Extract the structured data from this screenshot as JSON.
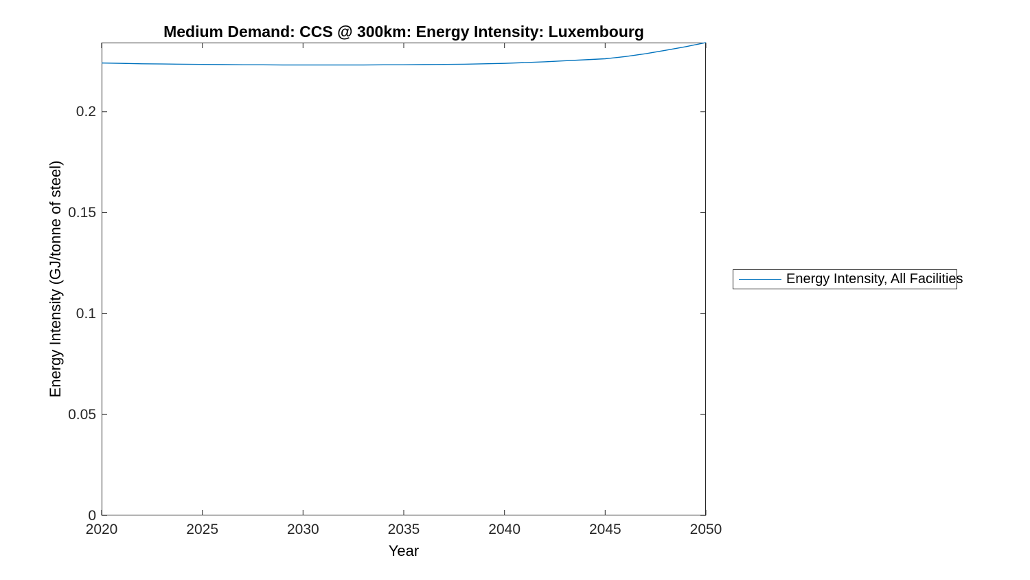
{
  "figure": {
    "title": "Medium Demand: CCS @ 300km: Energy Intensity: Luxembourg",
    "background": "#ffffff",
    "axis_color": "#262626",
    "line_color": "#0072BD"
  },
  "chart_data": {
    "type": "line",
    "title": "Medium Demand: CCS @ 300km: Energy Intensity: Luxembourg",
    "xlabel": "Year",
    "ylabel": "Energy Intensity (GJ/tonne of steel)",
    "legend": [
      "Energy Intensity, All Facilities"
    ],
    "legend_position": "outside-right",
    "grid": false,
    "box": true,
    "tick_direction": "in",
    "xlim": [
      2020,
      2050
    ],
    "ylim": [
      0,
      0.2343
    ],
    "xticks": [
      2020,
      2025,
      2030,
      2035,
      2040,
      2045,
      2050
    ],
    "xtick_labels": [
      "2020",
      "2025",
      "2030",
      "2035",
      "2040",
      "2045",
      "2050"
    ],
    "yticks": [
      0,
      0.05,
      0.1,
      0.15,
      0.2
    ],
    "ytick_labels": [
      "0",
      "0.05",
      "0.1",
      "0.15",
      "0.2"
    ],
    "series": [
      {
        "name": "Energy Intensity, All Facilities",
        "color": "#0072BD",
        "x": [
          2020,
          2021,
          2022,
          2023,
          2024,
          2025,
          2026,
          2027,
          2028,
          2029,
          2030,
          2031,
          2032,
          2033,
          2034,
          2035,
          2036,
          2037,
          2038,
          2039,
          2040,
          2041,
          2042,
          2043,
          2044,
          2045,
          2046,
          2047,
          2048,
          2049,
          2050
        ],
        "y": [
          0.2242,
          0.224,
          0.2238,
          0.2237,
          0.2236,
          0.2235,
          0.2234,
          0.2233,
          0.2233,
          0.2232,
          0.2232,
          0.2232,
          0.2232,
          0.2232,
          0.2233,
          0.2233,
          0.2234,
          0.2235,
          0.2236,
          0.2238,
          0.224,
          0.2244,
          0.2248,
          0.2253,
          0.2258,
          0.2263,
          0.2274,
          0.2288,
          0.2305,
          0.2323,
          0.2343
        ]
      }
    ]
  }
}
